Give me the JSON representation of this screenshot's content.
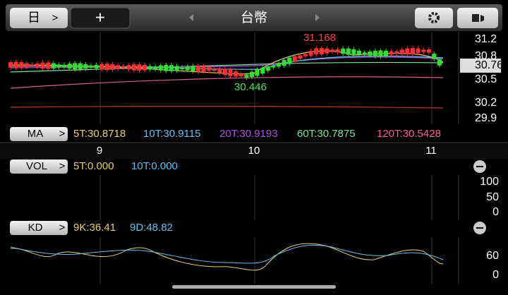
{
  "toolbar": {
    "period": "日",
    "add": "+",
    "title": "台幣"
  },
  "price_axis": [
    "31.2",
    "30.8",
    "30.76",
    "30.5",
    "30.2",
    "29.9"
  ],
  "annotations": {
    "high": "31.168",
    "low": "30.446"
  },
  "ma": {
    "button": "MA",
    "items": [
      "5T:30.8718",
      "10T:30.9115",
      "20T:30.9193",
      "60T:30.7875",
      "120T:30.5428"
    ]
  },
  "x_axis": [
    "9",
    "10",
    "11"
  ],
  "vol": {
    "button": "VOL",
    "items": [
      "5T:0.000",
      "10T:0.000"
    ],
    "axis": [
      "100",
      "50",
      "0"
    ]
  },
  "kd": {
    "button": "KD",
    "items": [
      "9K:36.41",
      "9D:48.82"
    ],
    "axis": [
      "60",
      "0"
    ]
  }
}
